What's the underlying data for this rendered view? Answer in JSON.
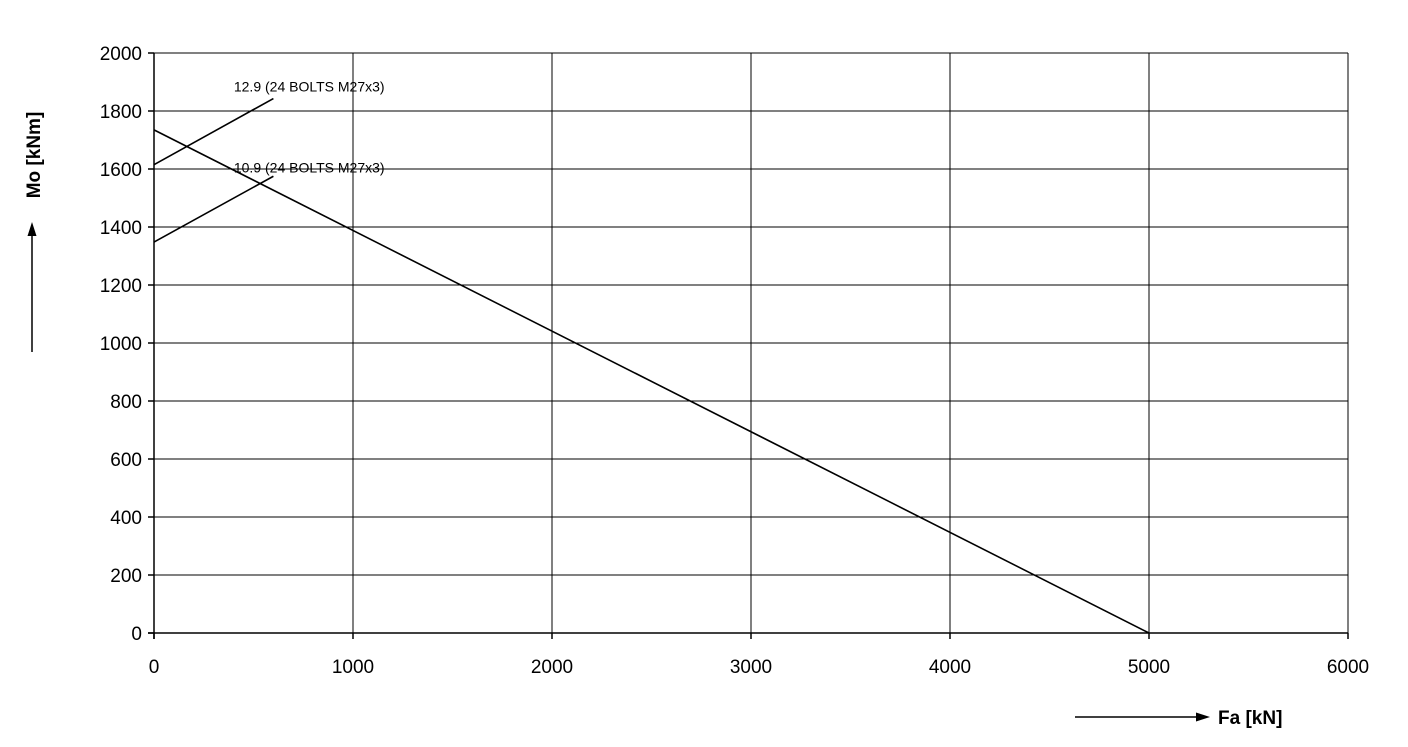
{
  "chart_data": {
    "type": "line",
    "title": "",
    "xlabel": "Fa [kN]",
    "ylabel": "Mo [kNm]",
    "xlim": [
      0,
      6000
    ],
    "ylim": [
      0,
      2000
    ],
    "x_ticks": [
      0,
      1000,
      2000,
      3000,
      4000,
      5000,
      6000
    ],
    "y_ticks": [
      0,
      200,
      400,
      600,
      800,
      1000,
      1200,
      1400,
      1600,
      1800,
      2000
    ],
    "grid": true,
    "legend": "none",
    "series": [
      {
        "name": "12.9 (24 BOLTS M27x3)",
        "x": [
          0,
          600
        ],
        "y": [
          1615,
          1843
        ]
      },
      {
        "name": "10.9 (24 BOLTS M27x3)",
        "x": [
          0,
          600
        ],
        "y": [
          1348,
          1575
        ]
      },
      {
        "name": "",
        "x": [
          0,
          5000
        ],
        "y": [
          1735,
          0
        ]
      }
    ],
    "annotations": [
      {
        "text": "12.9 (24 BOLTS M27x3)",
        "x": 780,
        "y": 1885,
        "leader": [
          600,
          1885
        ]
      },
      {
        "text": "10.9 (24 BOLTS M27x3)",
        "x": 780,
        "y": 1605,
        "leader": [
          600,
          1605
        ]
      }
    ]
  }
}
